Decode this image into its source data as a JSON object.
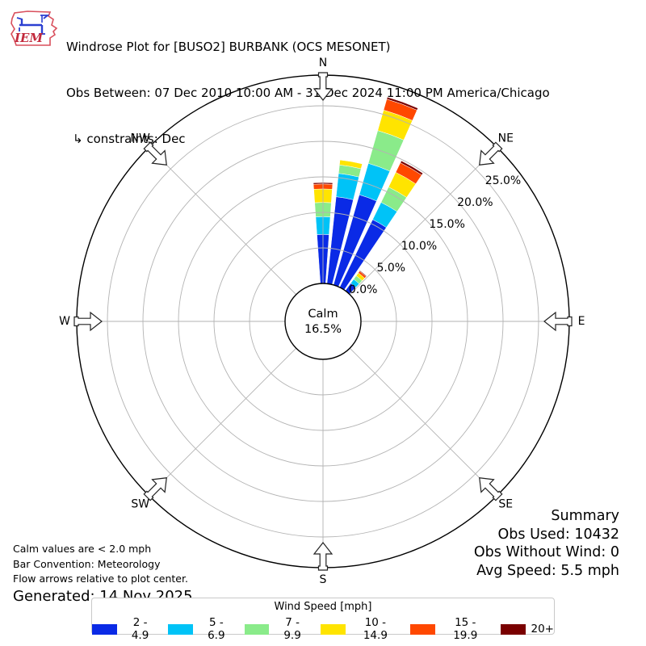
{
  "header": {
    "logo_text": "IEM",
    "title": "Windrose Plot for [BUSO2] BURBANK (OCS MESONET)",
    "subtitle": "Obs Between: 07 Dec 2010 10:00 AM - 31 Dec 2024 11:00 PM America/Chicago",
    "constraints": "↳ constraints: Dec"
  },
  "summary": {
    "heading": "Summary",
    "obs_used": "Obs Used: 10432",
    "obs_without_wind": "Obs Without Wind: 0",
    "avg_speed": "Avg Speed: 5.5 mph"
  },
  "notes": {
    "calm_note": "Calm values are < 2.0 mph",
    "convention_note": "Bar Convention: Meteorology",
    "arrows_note": "Flow arrows relative to plot center.",
    "generated": "Generated: 14 Nov 2025"
  },
  "chart_data": {
    "type": "windrose",
    "legend_title": "Wind Speed [mph]",
    "calm_label": "Calm",
    "calm_percent": 16.5,
    "calm_percent_label": "16.5%",
    "compass_labels": [
      "N",
      "NE",
      "E",
      "SE",
      "S",
      "SW",
      "W",
      "NW"
    ],
    "ring_percents": [
      0,
      5,
      10,
      15,
      20,
      25
    ],
    "ring_labels": [
      "0.0%",
      "5.0%",
      "10.0%",
      "15.0%",
      "20.0%",
      "25.0%"
    ],
    "axis_max_percent": 25,
    "speed_bins": [
      {
        "label": "2 - 4.9",
        "color": "#0a2ae6"
      },
      {
        "label": "5 - 6.9",
        "color": "#00c3f7"
      },
      {
        "label": "7 - 9.9",
        "color": "#8aeb8a"
      },
      {
        "label": "10 - 14.9",
        "color": "#ffe400"
      },
      {
        "label": "15 - 19.9",
        "color": "#ff4800"
      },
      {
        "label": "20+",
        "color": "#7a0000"
      }
    ],
    "bars": [
      {
        "direction_deg": 0,
        "percents": [
          6.9,
          2.5,
          2.0,
          1.9,
          0.7,
          0.2
        ]
      },
      {
        "direction_deg": 10,
        "percents": [
          12.3,
          3.3,
          1.2,
          0.7,
          0,
          0
        ]
      },
      {
        "direction_deg": 20,
        "percents": [
          13.2,
          4.6,
          4.8,
          3.0,
          1.6,
          0.3
        ]
      },
      {
        "direction_deg": 30,
        "percents": [
          10.6,
          2.7,
          2.4,
          2.3,
          1.5,
          0.3
        ]
      },
      {
        "direction_deg": 40,
        "percents": [
          1.3,
          0.7,
          0.6,
          0.5,
          0.3,
          0.1
        ]
      }
    ]
  }
}
